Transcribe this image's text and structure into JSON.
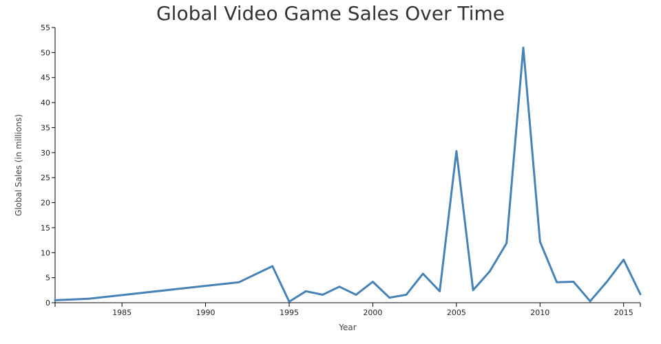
{
  "chart_data": {
    "type": "line",
    "title": "Global Video Game Sales Over Time",
    "xlabel": "Year",
    "ylabel": "Global Sales (in millions)",
    "xlim": [
      1981,
      2016
    ],
    "ylim": [
      0,
      55
    ],
    "x_ticks": [
      1985,
      1990,
      1995,
      2000,
      2005,
      2010,
      2015
    ],
    "y_ticks": [
      0,
      5,
      10,
      15,
      20,
      25,
      30,
      35,
      40,
      45,
      50,
      55
    ],
    "grid": false,
    "line_color": "#4682b4",
    "series": [
      {
        "x": [
          1981,
          1983,
          1992,
          1994,
          1995,
          1996,
          1997,
          1998,
          1999,
          2000,
          2001,
          2002,
          2003,
          2004,
          2005,
          2006,
          2007,
          2008,
          2009,
          2010,
          2011,
          2012,
          2013,
          2014,
          2015,
          2016
        ],
        "values": [
          0.5,
          0.8,
          4.1,
          7.3,
          0.2,
          2.3,
          1.6,
          3.2,
          1.6,
          4.2,
          1.0,
          1.6,
          5.8,
          2.3,
          30.3,
          2.5,
          6.3,
          11.9,
          51.0,
          12.2,
          4.1,
          4.2,
          0.3,
          4.2,
          8.6,
          1.7
        ]
      }
    ]
  }
}
